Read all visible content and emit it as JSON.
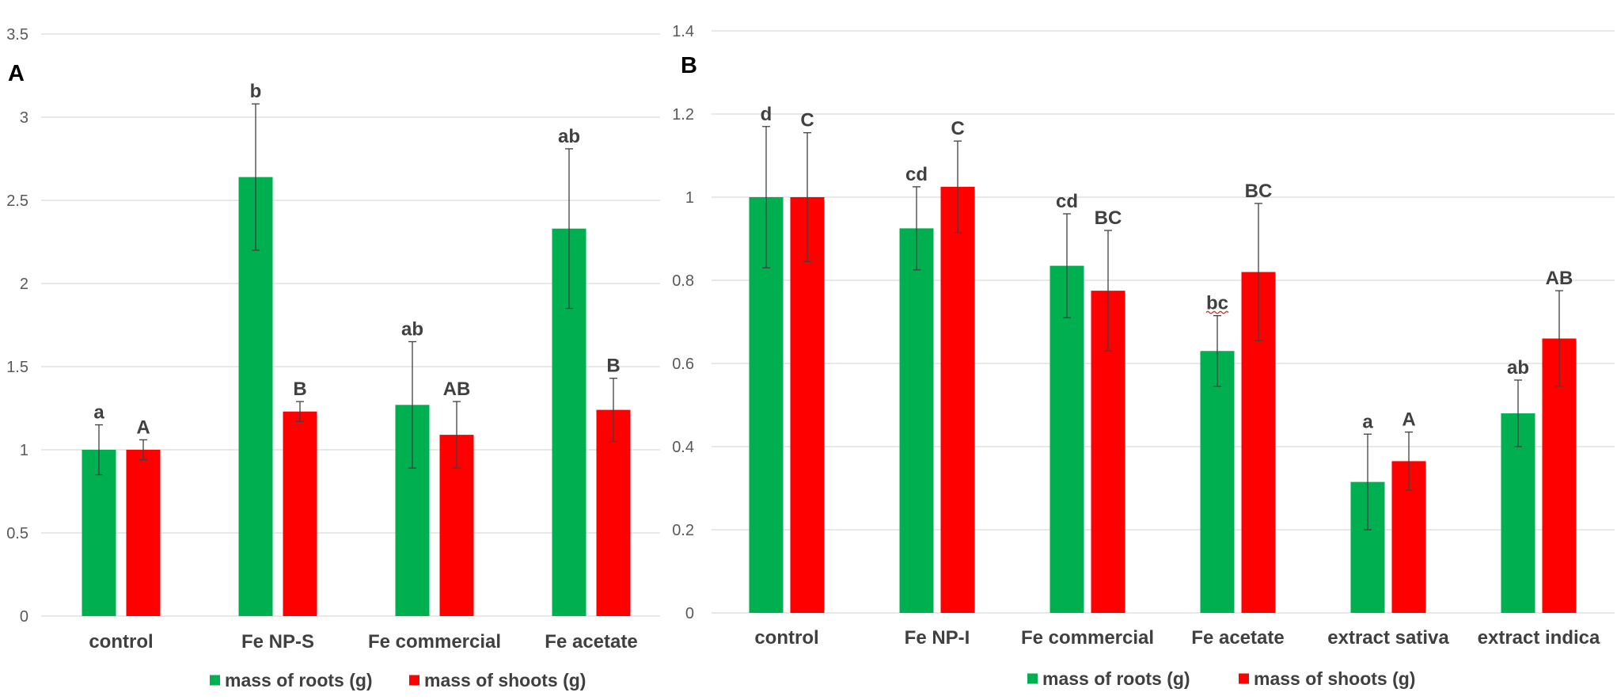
{
  "chart_data": [
    {
      "type": "bar",
      "panel_label": "A",
      "categories": [
        "control",
        "Fe NP-S",
        "Fe commercial",
        "Fe acetate"
      ],
      "ylim": [
        0,
        3.5
      ],
      "yticks": [
        0,
        0.5,
        1,
        1.5,
        2,
        2.5,
        3,
        3.5
      ],
      "grid": true,
      "legend_placement": "bottom",
      "series": [
        {
          "name": "mass of roots (g)",
          "color": "#00B050",
          "values": [
            1.0,
            2.64,
            1.27,
            2.33
          ],
          "errors": [
            0.15,
            0.44,
            0.38,
            0.48
          ],
          "letters": [
            "a",
            "b",
            "ab",
            "ab"
          ]
        },
        {
          "name": "mass of shoots (g)",
          "color": "#FF0000",
          "values": [
            1.0,
            1.23,
            1.09,
            1.24
          ],
          "errors": [
            0.06,
            0.06,
            0.2,
            0.19
          ],
          "letters": [
            "A",
            "B",
            "AB",
            "B"
          ]
        }
      ]
    },
    {
      "type": "bar",
      "panel_label": "B",
      "categories": [
        "control",
        "Fe NP-I",
        "Fe commercial",
        "Fe acetate",
        "extract sativa",
        "extract indica"
      ],
      "ylim": [
        0,
        1.4
      ],
      "yticks": [
        0,
        0.2,
        0.4,
        0.6,
        0.8,
        1,
        1.2,
        1.4
      ],
      "grid": true,
      "legend_placement": "bottom",
      "series": [
        {
          "name": "mass of roots (g)",
          "color": "#00B050",
          "values": [
            1.0,
            0.925,
            0.835,
            0.63,
            0.315,
            0.48
          ],
          "errors": [
            0.17,
            0.1,
            0.125,
            0.085,
            0.115,
            0.08
          ],
          "letters": [
            "d",
            "cd",
            "cd",
            "bc",
            "a",
            "ab"
          ]
        },
        {
          "name": "mass of shoots (g)",
          "color": "#FF0000",
          "values": [
            1.0,
            1.025,
            0.775,
            0.82,
            0.365,
            0.66
          ],
          "errors": [
            0.155,
            0.11,
            0.145,
            0.165,
            0.07,
            0.115
          ],
          "letters": [
            "C",
            "C",
            "BC",
            "BC",
            "A",
            "AB"
          ]
        }
      ]
    }
  ]
}
